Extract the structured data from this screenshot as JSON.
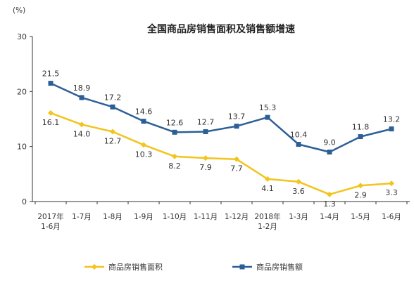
{
  "chart_data": {
    "type": "line",
    "title": "全国商品房销售面积及销售额增速",
    "unit": "(%)",
    "ylim": [
      0,
      30
    ],
    "yticks": [
      "0",
      "10",
      "20",
      "30"
    ],
    "grid": false,
    "legend_placement": "bottom",
    "categories": [
      [
        "2017年",
        "1-6月"
      ],
      [
        "1-7月"
      ],
      [
        "1-8月"
      ],
      [
        "1-9月"
      ],
      [
        "1-10月"
      ],
      [
        "1-11月"
      ],
      [
        "1-12月"
      ],
      [
        "2018年",
        "1-2月"
      ],
      [
        "1-3月"
      ],
      [
        "1-4月"
      ],
      [
        "1-5月"
      ],
      [
        "1-6月"
      ]
    ],
    "series": [
      {
        "name": "商品房销售面积",
        "color": "#f2c41c",
        "values": [
          16.1,
          14.0,
          12.7,
          10.3,
          8.2,
          7.9,
          7.7,
          4.1,
          3.6,
          1.3,
          2.9,
          3.3
        ],
        "labels": [
          "16.1",
          "14.0",
          "12.7",
          "10.3",
          "8.2",
          "7.9",
          "7.7",
          "4.1",
          "3.6",
          "1.3",
          "2.9",
          "3.3"
        ]
      },
      {
        "name": "商品房销售额",
        "color": "#2d5f97",
        "values": [
          21.5,
          18.9,
          17.2,
          14.6,
          12.6,
          12.7,
          13.7,
          15.3,
          10.4,
          9.0,
          11.8,
          13.2
        ],
        "labels": [
          "21.5",
          "18.9",
          "17.2",
          "14.6",
          "12.6",
          "12.7",
          "13.7",
          "15.3",
          "10.4",
          "9.0",
          "11.8",
          "13.2"
        ]
      }
    ]
  }
}
